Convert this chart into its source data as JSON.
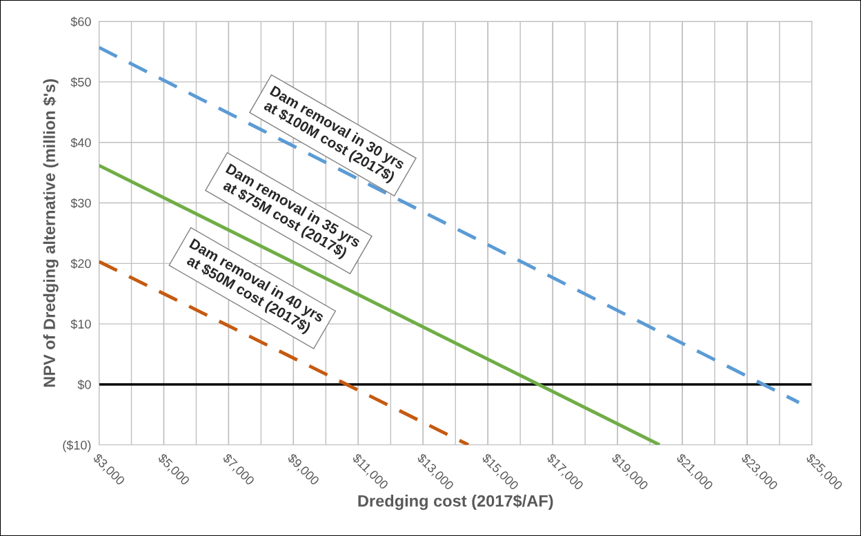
{
  "chart_data": {
    "type": "line",
    "xlabel": "Dredging cost (2017$/AF)",
    "ylabel": "NPV of Dredging alternative (million $'s)",
    "series": [
      {
        "x": [
          3000,
          24600
        ],
        "values": [
          55.7,
          -3.0
        ],
        "color": "#5b9bd5",
        "line_style": "dashed"
      },
      {
        "x": [
          3000,
          20300
        ],
        "values": [
          36.2,
          -10
        ],
        "color": "#70ad47",
        "line_style": "solid"
      },
      {
        "x": [
          3000,
          14400
        ],
        "values": [
          20.3,
          -10
        ],
        "color": "#c55a11",
        "line_style": "dashed"
      }
    ],
    "annotations": [
      "Dam removal in 30 yrs\nat $100M cost (2017$)",
      "Dam removal in 35 yrs\nat $75M cost (2017$)",
      "Dam removal in 40 yrs\nat $50M cost (2017$)"
    ],
    "ref_lines": [
      {
        "axis": "y",
        "value": 0,
        "color": "#000000",
        "line_style": "solid"
      }
    ],
    "xlim": [
      3000,
      25000
    ],
    "xticks": [
      {
        "value": 3000,
        "label": "$3,000"
      },
      {
        "value": 5000,
        "label": "$5,000"
      },
      {
        "value": 7000,
        "label": "$7,000"
      },
      {
        "value": 9000,
        "label": "$9,000"
      },
      {
        "value": 11000,
        "label": "$11,000"
      },
      {
        "value": 13000,
        "label": "$13,000"
      },
      {
        "value": 15000,
        "label": "$15,000"
      },
      {
        "value": 17000,
        "label": "$17,000"
      },
      {
        "value": 19000,
        "label": "$19,000"
      },
      {
        "value": 21000,
        "label": "$21,000"
      },
      {
        "value": 23000,
        "label": "$23,000"
      },
      {
        "value": 25000,
        "label": "$25,000"
      }
    ],
    "ylim": [
      -10,
      60
    ],
    "yticks": [
      {
        "value": -10,
        "label": "($10)"
      },
      {
        "value": 0,
        "label": "$0"
      },
      {
        "value": 10,
        "label": "$10"
      },
      {
        "value": 20,
        "label": "$20"
      },
      {
        "value": 30,
        "label": "$30"
      },
      {
        "value": 40,
        "label": "$40"
      },
      {
        "value": 50,
        "label": "$50"
      },
      {
        "value": 60,
        "label": "$60"
      }
    ],
    "grid": true,
    "legend": false,
    "marker": "none"
  }
}
